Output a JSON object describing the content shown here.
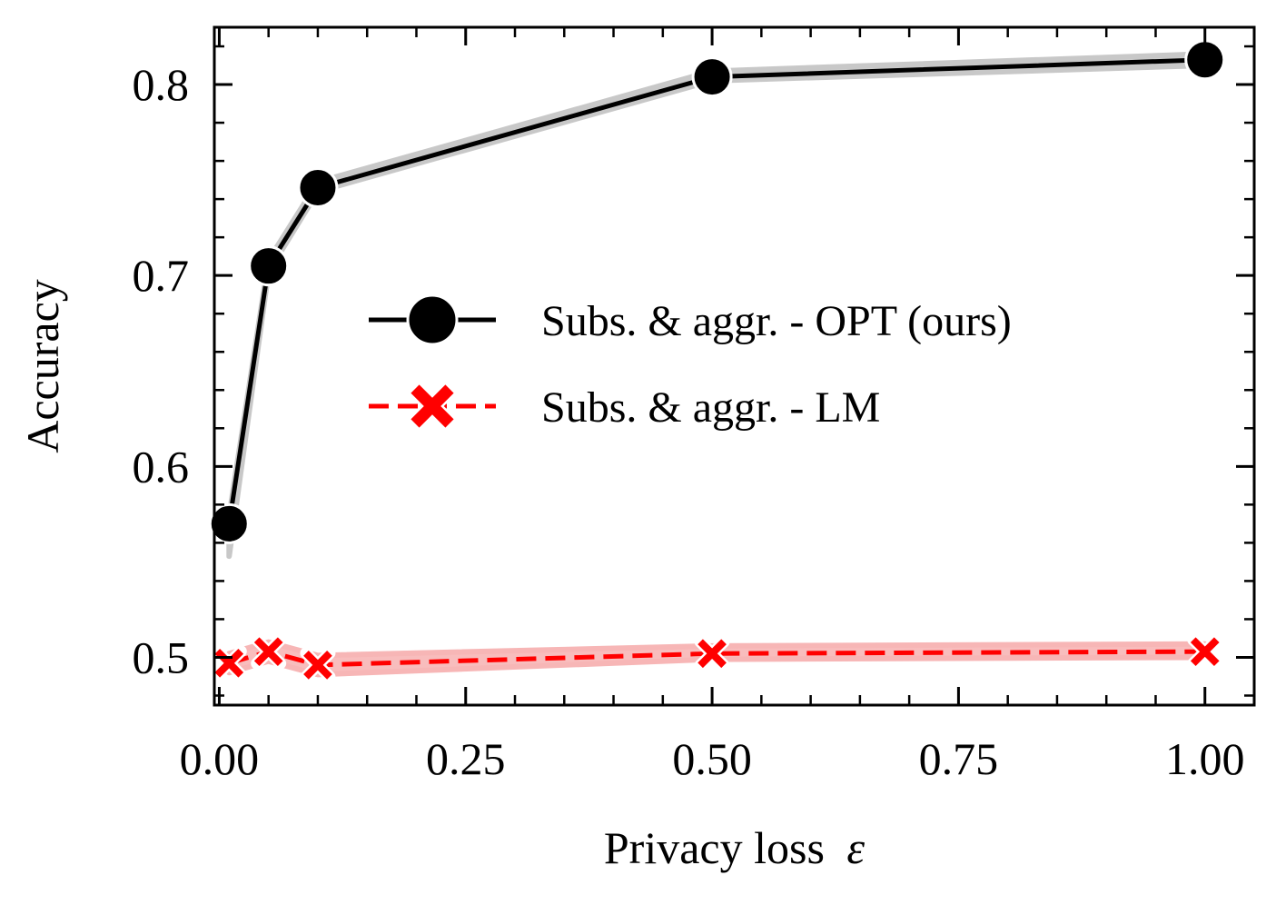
{
  "chart_data": {
    "type": "line",
    "xlabel": "Privacy loss",
    "xlabel_symbol": "ε",
    "ylabel": "Accuracy",
    "xlim": [
      -0.005,
      1.05
    ],
    "ylim": [
      0.475,
      0.83
    ],
    "x_ticks": [
      {
        "value": 0.0,
        "label": "0.00"
      },
      {
        "value": 0.25,
        "label": "0.25"
      },
      {
        "value": 0.5,
        "label": "0.50"
      },
      {
        "value": 0.75,
        "label": "0.75"
      },
      {
        "value": 1.0,
        "label": "1.00"
      }
    ],
    "y_ticks": [
      {
        "value": 0.5,
        "label": "0.5"
      },
      {
        "value": 0.6,
        "label": "0.6"
      },
      {
        "value": 0.7,
        "label": "0.7"
      },
      {
        "value": 0.8,
        "label": "0.8"
      }
    ],
    "x_minor_step": 0.05,
    "y_minor_step": 0.02,
    "legend_position": "center-right",
    "series": [
      {
        "name": "Subs. & aggr. - OPT (ours)",
        "color": "#000000",
        "band_color": "#c8c8c8",
        "marker": "circle",
        "line_style": "solid",
        "x": [
          0.01,
          0.05,
          0.1,
          0.5,
          1.0
        ],
        "y": [
          0.57,
          0.705,
          0.746,
          0.804,
          0.813
        ],
        "band_lower": [
          0.553,
          0.702,
          0.744,
          0.802,
          0.81
        ],
        "band_upper": [
          0.574,
          0.708,
          0.749,
          0.807,
          0.816
        ]
      },
      {
        "name": "Subs. & aggr. - LM",
        "color": "#ff0000",
        "band_color": "#f7b6b6",
        "marker": "x",
        "line_style": "dashed",
        "x": [
          0.01,
          0.05,
          0.1,
          0.5,
          1.0
        ],
        "y": [
          0.497,
          0.503,
          0.496,
          0.502,
          0.503
        ],
        "band_lower": [
          0.492,
          0.498,
          0.491,
          0.499,
          0.5
        ],
        "band_upper": [
          0.502,
          0.508,
          0.501,
          0.506,
          0.507
        ]
      }
    ]
  }
}
